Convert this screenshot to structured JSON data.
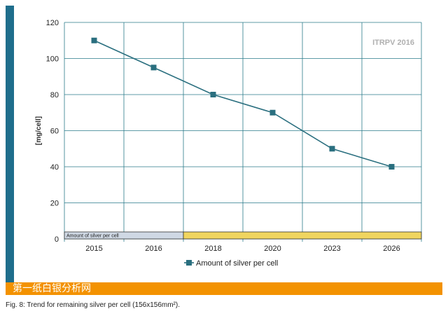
{
  "chart_data": {
    "type": "line",
    "categories": [
      "2015",
      "2016",
      "2018",
      "2020",
      "2023",
      "2026"
    ],
    "series": [
      {
        "name": "Amount of silver per cell",
        "values": [
          110,
          95,
          80,
          70,
          50,
          40
        ]
      }
    ],
    "ylabel": "[mg/cell]",
    "xlabel": "",
    "ylim": [
      0,
      120
    ],
    "yticks": [
      0,
      20,
      40,
      60,
      80,
      100,
      120
    ],
    "grid": true,
    "legend": "bottom-center",
    "annotation": "ITRPV 2016",
    "bottom_band_label": "Amount of silver per cell",
    "colors": {
      "series": "#2a6f7f",
      "grid": "#2a7a8a",
      "band_left": "#cfd8e4",
      "band_right": "#f0d560",
      "accent_bar": "#1f6e8c",
      "watermark_band": "#f39200"
    }
  },
  "watermark": "第一纸白银分析网",
  "caption": "Fig. 8: Trend for remaining silver per cell (156x156mm²)."
}
